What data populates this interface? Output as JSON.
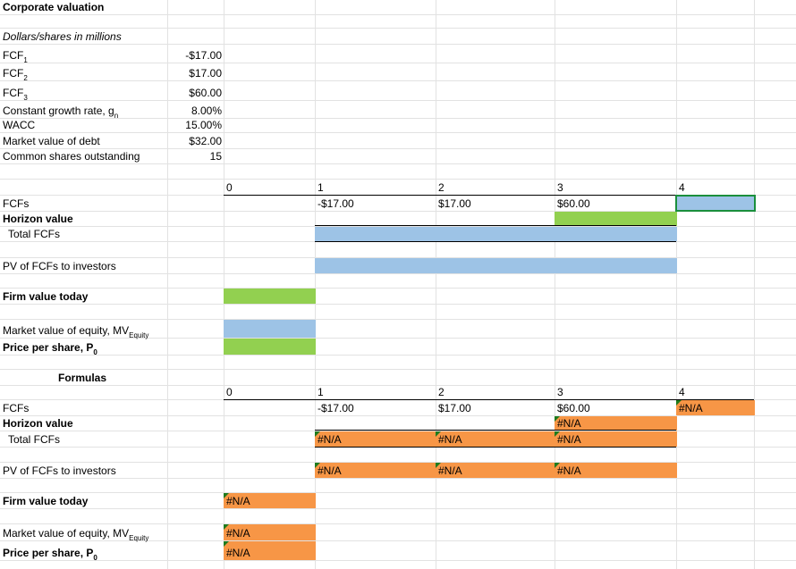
{
  "title": "Corporate valuation",
  "units": "Dollars/shares in millions",
  "inputs": [
    {
      "label": "FCF",
      "sub": "1",
      "value": "-$17.00"
    },
    {
      "label": "FCF",
      "sub": "2",
      "value": "$17.00"
    },
    {
      "label": "FCF",
      "sub": "3",
      "value": "$60.00"
    },
    {
      "label": "Constant growth rate, g",
      "sub": "n",
      "value": "8.00%"
    },
    {
      "label": "WACC",
      "value": "15.00%"
    },
    {
      "label": "Market value of debt",
      "value": "$32.00"
    },
    {
      "label": "Common shares outstanding",
      "value": 15
    }
  ],
  "sections": [
    {
      "periods": [
        0,
        1,
        2,
        3,
        4
      ],
      "fcfs_label": "FCFs",
      "fcfs": [
        "-$17.00",
        "$17.00",
        "$60.00"
      ],
      "horizon_label": "Horizon value",
      "total_label": "Total FCFs",
      "pv_label": "PV of FCFs to investors",
      "firm_label": "Firm value today",
      "equity_label": "Market value of equity, MV",
      "equity_sub": "Equity",
      "price_label": "Price per share, P",
      "price_sub": "0"
    },
    {
      "heading": "Formulas",
      "periods": [
        0,
        1,
        2,
        3,
        4
      ],
      "fcfs_label": "FCFs",
      "fcfs": [
        "-$17.00",
        "$17.00",
        "$60.00",
        "#N/A"
      ],
      "horizon_label": "Horizon value",
      "horizon_value": "#N/A",
      "total_label": "Total FCFs",
      "total_values": [
        "#N/A",
        "#N/A",
        "#N/A"
      ],
      "pv_label": "PV of FCFs to investors",
      "pv_values": [
        "#N/A",
        "#N/A",
        "#N/A"
      ],
      "firm_label": "Firm value today",
      "firm_value": "#N/A",
      "equity_label": "Market value of equity, MV",
      "equity_sub": "Equity",
      "equity_value": "#N/A",
      "price_label": "Price per share, P",
      "price_sub": "0",
      "price_value": "#N/A"
    }
  ]
}
